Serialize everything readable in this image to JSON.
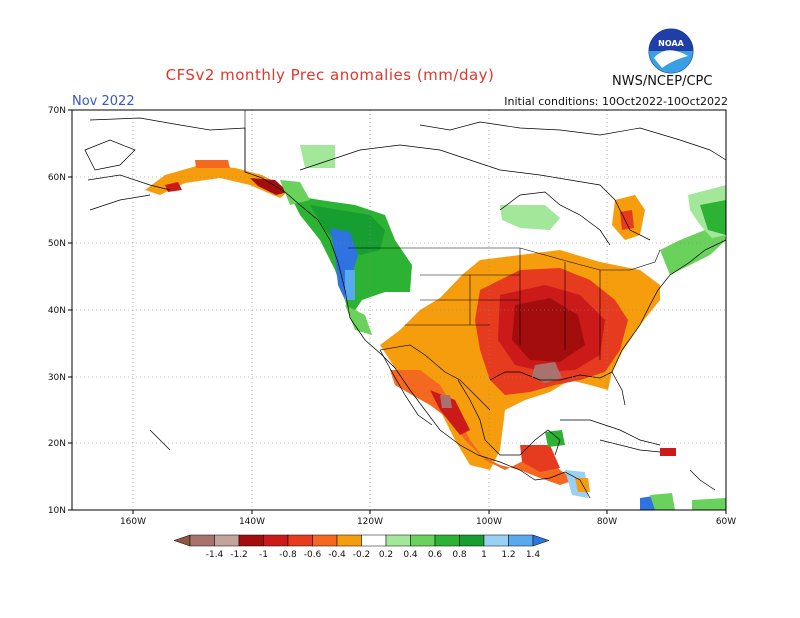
{
  "title": "CFSv2 monthly Prec anomalies (mm/day)",
  "month": "Nov 2022",
  "init": "Initial conditions: 10Oct2022-10Oct2022",
  "agency": "NWS/NCEP/CPC",
  "logo_text": "NOAA",
  "lon_ticks": [
    "160W",
    "140W",
    "120W",
    "100W",
    "80W",
    "60W"
  ],
  "lat_ticks": [
    "70N",
    "60N",
    "50N",
    "40N",
    "30N",
    "20N",
    "10N"
  ],
  "colorbar": {
    "labels": [
      "-1.4",
      "-1.2",
      "-1",
      "-0.8",
      "-0.6",
      "-0.4",
      "-0.2",
      "0.2",
      "0.4",
      "0.6",
      "0.8",
      "1",
      "1.2",
      "1.4"
    ],
    "colors": [
      "#8b5a3c",
      "#a8736e",
      "#c3a39b",
      "#a40d0d",
      "#cc1a1a",
      "#e63b1f",
      "#f4691f",
      "#f59d0c",
      "#ffffff",
      "#a3e89a",
      "#6ad15d",
      "#2db334",
      "#169e30",
      "#9ad0f4",
      "#59a9ee",
      "#2f73e0"
    ]
  }
}
